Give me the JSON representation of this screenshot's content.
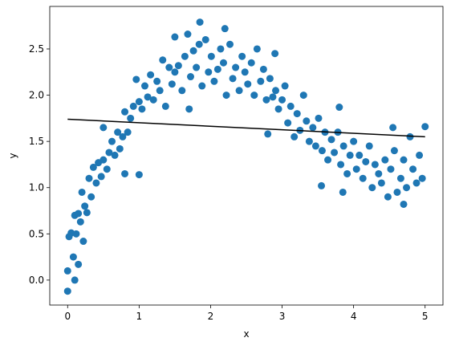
{
  "chart_data": {
    "type": "scatter",
    "x_label": "x",
    "y_label": "y",
    "xlim": [
      -0.25,
      5.25
    ],
    "ylim": [
      -0.27,
      2.96
    ],
    "xticks": [
      0,
      1,
      2,
      3,
      4,
      5
    ],
    "yticks": [
      {
        "value": 0,
        "label": "0.0"
      },
      {
        "value": 0.5,
        "label": "0.5"
      },
      {
        "value": 1,
        "label": "1.0"
      },
      {
        "value": 1.5,
        "label": "1.5"
      },
      {
        "value": 2,
        "label": "2.0"
      },
      {
        "value": 2.5,
        "label": "2.5"
      }
    ],
    "grid": false,
    "series": [
      {
        "type": "scatter",
        "color": "#1f77b4",
        "x": [
          0.0,
          0.02,
          0.05,
          0.08,
          0.1,
          0.12,
          0.15,
          0.18,
          0.2,
          0.24,
          0.27,
          0.3,
          0.33,
          0.36,
          0.4,
          0.43,
          0.47,
          0.5,
          0.55,
          0.58,
          0.62,
          0.66,
          0.7,
          0.73,
          0.77,
          0.8,
          0.84,
          0.88,
          0.92,
          0.96,
          1.0,
          1.04,
          1.08,
          1.12,
          1.16,
          1.2,
          1.25,
          1.29,
          1.33,
          1.37,
          1.42,
          1.46,
          1.5,
          1.55,
          1.6,
          1.64,
          1.68,
          1.72,
          1.76,
          1.8,
          1.84,
          1.88,
          1.93,
          1.97,
          2.01,
          2.05,
          2.1,
          2.14,
          2.18,
          2.22,
          2.27,
          2.31,
          2.35,
          2.4,
          2.44,
          2.48,
          2.52,
          2.57,
          2.61,
          2.65,
          2.7,
          2.74,
          2.78,
          2.83,
          2.87,
          2.91,
          2.95,
          3.0,
          3.04,
          3.08,
          3.12,
          3.17,
          3.21,
          3.25,
          3.3,
          3.34,
          3.38,
          3.43,
          3.47,
          3.51,
          3.56,
          3.6,
          3.64,
          3.69,
          3.73,
          3.78,
          3.82,
          3.86,
          3.91,
          3.95,
          4.0,
          4.04,
          4.08,
          4.13,
          4.17,
          4.22,
          4.26,
          4.3,
          4.35,
          4.39,
          4.44,
          4.48,
          4.52,
          4.57,
          4.61,
          4.66,
          4.7,
          4.74,
          4.79,
          4.83,
          4.88,
          4.92,
          4.96,
          5.0,
          0.0,
          0.1,
          0.15,
          1.0,
          1.85,
          2.2,
          2.9,
          3.55,
          0.8,
          0.22,
          1.5,
          0.5,
          4.55,
          3.8,
          3.85,
          1.7,
          2.8,
          4.7
        ],
        "values": [
          0.1,
          0.47,
          0.51,
          0.25,
          0.7,
          0.5,
          0.72,
          0.63,
          0.95,
          0.8,
          0.73,
          1.1,
          0.9,
          1.22,
          1.05,
          1.27,
          1.12,
          1.3,
          1.2,
          1.38,
          1.5,
          1.35,
          1.6,
          1.42,
          1.55,
          1.82,
          1.6,
          1.75,
          1.88,
          2.17,
          1.93,
          1.85,
          2.1,
          1.98,
          2.22,
          1.95,
          2.15,
          2.05,
          2.38,
          1.88,
          2.3,
          2.12,
          2.25,
          2.32,
          2.05,
          2.42,
          2.66,
          2.2,
          2.48,
          2.3,
          2.55,
          2.1,
          2.6,
          2.25,
          2.42,
          2.15,
          2.28,
          2.5,
          2.35,
          2.0,
          2.55,
          2.18,
          2.3,
          2.05,
          2.42,
          2.25,
          2.12,
          2.35,
          2.0,
          2.5,
          2.15,
          2.28,
          1.95,
          2.18,
          1.98,
          2.05,
          1.85,
          1.95,
          2.1,
          1.7,
          1.88,
          1.55,
          1.8,
          1.62,
          2.0,
          1.72,
          1.5,
          1.65,
          1.45,
          1.75,
          1.4,
          1.6,
          1.3,
          1.52,
          1.38,
          1.6,
          1.25,
          1.45,
          1.15,
          1.35,
          1.5,
          1.2,
          1.35,
          1.1,
          1.28,
          1.45,
          1.0,
          1.25,
          1.15,
          1.05,
          1.3,
          0.9,
          1.2,
          1.4,
          0.95,
          1.1,
          1.3,
          1.0,
          1.55,
          1.2,
          1.05,
          1.35,
          1.1,
          1.66,
          -0.12,
          0.0,
          0.17,
          1.14,
          2.79,
          2.72,
          2.45,
          1.02,
          1.15,
          0.42,
          2.63,
          1.65,
          1.65,
          1.87,
          0.95,
          1.85,
          1.58,
          0.82
        ]
      },
      {
        "type": "line",
        "color": "#000000",
        "x": [
          0,
          5
        ],
        "values": [
          1.74,
          1.55
        ]
      }
    ]
  }
}
